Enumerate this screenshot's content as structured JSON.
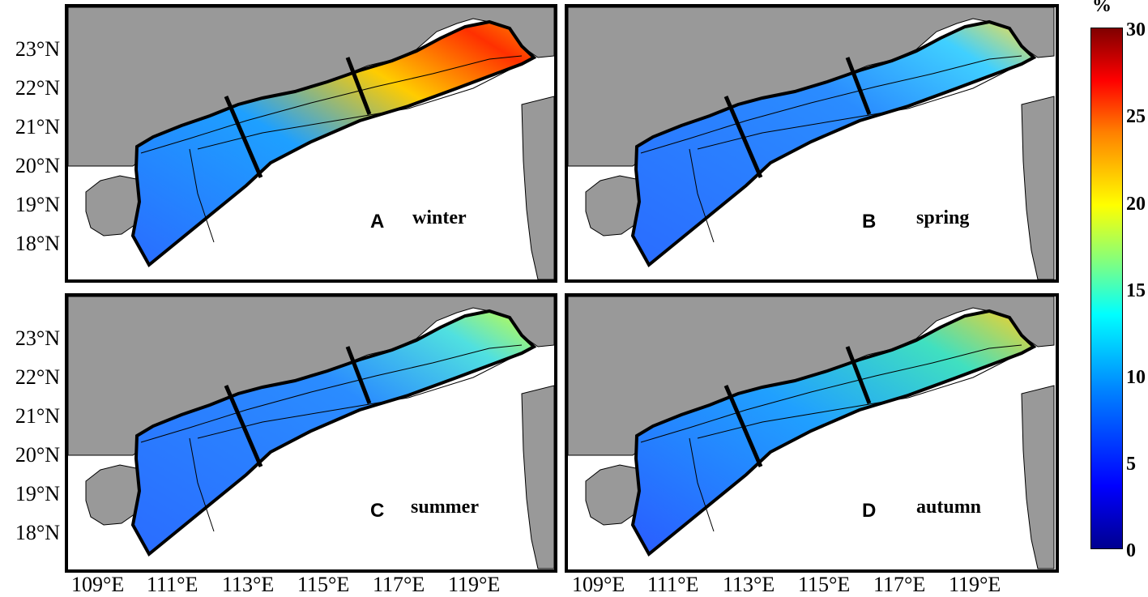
{
  "panels": [
    {
      "letter": "A",
      "season": "winter"
    },
    {
      "letter": "B",
      "season": "spring"
    },
    {
      "letter": "C",
      "season": "summer"
    },
    {
      "letter": "D",
      "season": "autumn"
    }
  ],
  "lat_labels": [
    "23°N",
    "22°N",
    "21°N",
    "20°N",
    "19°N",
    "18°N"
  ],
  "lon_labels": [
    "109°E",
    "111°E",
    "113°E",
    "115°E",
    "117°E",
    "119°E"
  ],
  "colorbar": {
    "unit": "%",
    "ticks": [
      "30",
      "25",
      "20",
      "15",
      "10",
      "5",
      "0"
    ],
    "colormap": "jet",
    "min": 0,
    "max": 30
  },
  "colors": {
    "land": "#999999",
    "sea_background": "#ffffff",
    "domain_outline": "#000000"
  }
}
